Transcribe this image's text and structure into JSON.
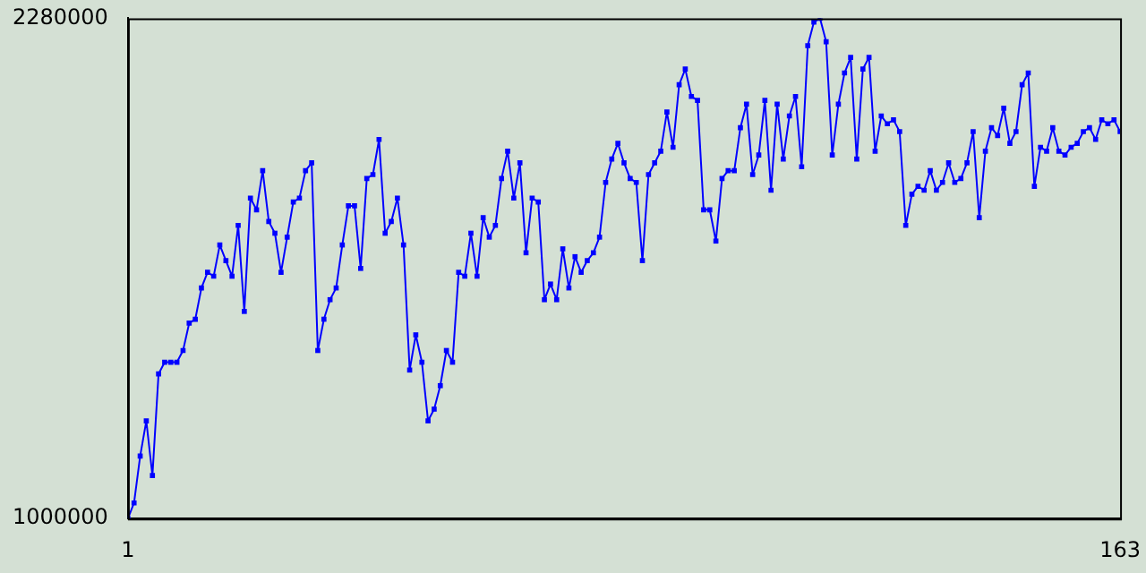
{
  "chart_data": {
    "type": "line",
    "color": "#0000ff",
    "marker": "square",
    "grid": false,
    "legend": false,
    "xlim": [
      1,
      163
    ],
    "xticks": [
      1,
      163
    ],
    "ylim": [
      1000000,
      2280000
    ],
    "yticks": [
      1000000,
      2280000
    ],
    "x": [
      1,
      2,
      3,
      4,
      5,
      6,
      7,
      8,
      9,
      10,
      11,
      12,
      13,
      14,
      15,
      16,
      17,
      18,
      19,
      20,
      21,
      22,
      23,
      24,
      25,
      26,
      27,
      28,
      29,
      30,
      31,
      32,
      33,
      34,
      35,
      36,
      37,
      38,
      39,
      40,
      41,
      42,
      43,
      44,
      45,
      46,
      47,
      48,
      49,
      50,
      51,
      52,
      53,
      54,
      55,
      56,
      57,
      58,
      59,
      60,
      61,
      62,
      63,
      64,
      65,
      66,
      67,
      68,
      69,
      70,
      71,
      72,
      73,
      74,
      75,
      76,
      77,
      78,
      79,
      80,
      81,
      82,
      83,
      84,
      85,
      86,
      87,
      88,
      89,
      90,
      91,
      92,
      93,
      94,
      95,
      96,
      97,
      98,
      99,
      100,
      101,
      102,
      103,
      104,
      105,
      106,
      107,
      108,
      109,
      110,
      111,
      112,
      113,
      114,
      115,
      116,
      117,
      118,
      119,
      120,
      121,
      122,
      123,
      124,
      125,
      126,
      127,
      128,
      129,
      130,
      131,
      132,
      133,
      134,
      135,
      136,
      137,
      138,
      139,
      140,
      141,
      142,
      143,
      144,
      145,
      146,
      147,
      148,
      149,
      150,
      151,
      152,
      153,
      154,
      155,
      156,
      157,
      158,
      159,
      160,
      161,
      162,
      163
    ],
    "values": [
      1000000,
      1040000,
      1160000,
      1250000,
      1110000,
      1370000,
      1400000,
      1400000,
      1400000,
      1430000,
      1500000,
      1510000,
      1590000,
      1630000,
      1620000,
      1700000,
      1660000,
      1620000,
      1750000,
      1530000,
      1820000,
      1790000,
      1890000,
      1760000,
      1730000,
      1630000,
      1720000,
      1810000,
      1820000,
      1890000,
      1910000,
      1430000,
      1510000,
      1560000,
      1590000,
      1700000,
      1800000,
      1800000,
      1640000,
      1870000,
      1880000,
      1970000,
      1730000,
      1760000,
      1820000,
      1700000,
      1380000,
      1470000,
      1400000,
      1250000,
      1280000,
      1340000,
      1430000,
      1400000,
      1630000,
      1620000,
      1730000,
      1620000,
      1770000,
      1720000,
      1750000,
      1870000,
      1940000,
      1820000,
      1910000,
      1680000,
      1820000,
      1810000,
      1560000,
      1600000,
      1560000,
      1690000,
      1590000,
      1670000,
      1630000,
      1660000,
      1680000,
      1720000,
      1860000,
      1920000,
      1960000,
      1910000,
      1870000,
      1860000,
      1660000,
      1880000,
      1910000,
      1940000,
      2040000,
      1950000,
      2110000,
      2150000,
      2080000,
      2070000,
      1790000,
      1790000,
      1710000,
      1870000,
      1890000,
      1890000,
      2000000,
      2060000,
      1880000,
      1930000,
      2070000,
      1840000,
      2060000,
      1920000,
      2030000,
      2080000,
      1900000,
      2210000,
      2270000,
      2280000,
      2220000,
      1930000,
      2060000,
      2140000,
      2180000,
      1920000,
      2150000,
      2180000,
      1940000,
      2030000,
      2010000,
      2020000,
      1990000,
      1750000,
      1830000,
      1850000,
      1840000,
      1890000,
      1840000,
      1860000,
      1910000,
      1860000,
      1870000,
      1910000,
      1990000,
      1770000,
      1940000,
      2000000,
      1980000,
      2050000,
      1960000,
      1990000,
      2110000,
      2140000,
      1850000,
      1950000,
      1940000,
      2000000,
      1940000,
      1930000,
      1950000,
      1960000,
      1990000,
      2000000,
      1970000,
      2020000,
      2010000,
      2020000,
      1990000
    ]
  }
}
